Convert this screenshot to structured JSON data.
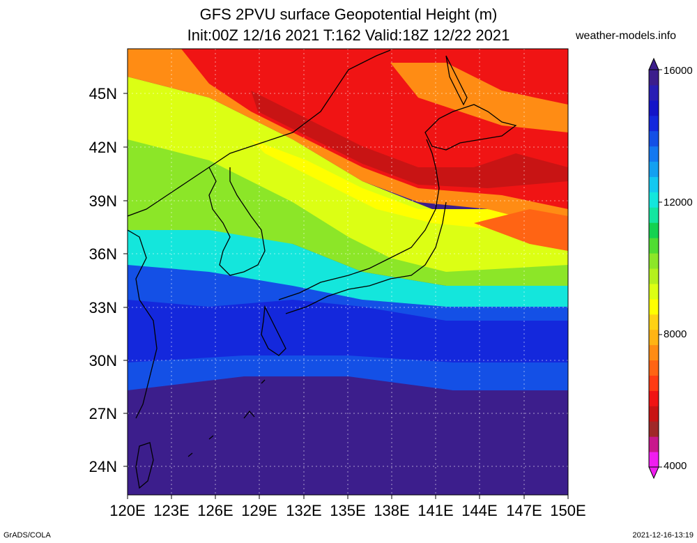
{
  "title": {
    "line1": "GFS 2PVU surface Geopotential Height (m)",
    "line2": "Init:00Z 12/16 2021 T:162 Valid:18Z 12/22 2021"
  },
  "site": "weather-models.info",
  "footer": {
    "left": "GrADS/COLA",
    "right": "2021-12-16-13:19"
  },
  "axes": {
    "lat_labels": [
      "45N",
      "42N",
      "39N",
      "36N",
      "33N",
      "30N",
      "27N",
      "24N"
    ],
    "lon_labels": [
      "120E",
      "123E",
      "126E",
      "129E",
      "132E",
      "135E",
      "138E",
      "141E",
      "144E",
      "147E",
      "150E"
    ]
  },
  "colorbar": {
    "labels": [
      "16000",
      "12000",
      "8000",
      "4000"
    ],
    "colors": [
      "#f01ef0",
      "#c8188c",
      "#a02828",
      "#c81414",
      "#f01414",
      "#ff3c14",
      "#ff6414",
      "#ff8c14",
      "#ffb414",
      "#ffd214",
      "#ffff00",
      "#dcff14",
      "#b4f01e",
      "#8ce628",
      "#50dc32",
      "#14d250",
      "#14e6a0",
      "#14e6dc",
      "#14c8f0",
      "#14a0f0",
      "#1478f0",
      "#1450e6",
      "#1428dc",
      "#1414c8",
      "#281eb4",
      "#3c1e8c"
    ]
  },
  "colors": {
    "band_orange": "#ff8c14",
    "band_red": "#f01414",
    "band_yellow": "#ffff00",
    "band_green": "#8ce628",
    "band_cyan": "#14e6dc",
    "band_blue": "#1450e6",
    "band_navy": "#281eb4",
    "coastline": "#000000"
  }
}
